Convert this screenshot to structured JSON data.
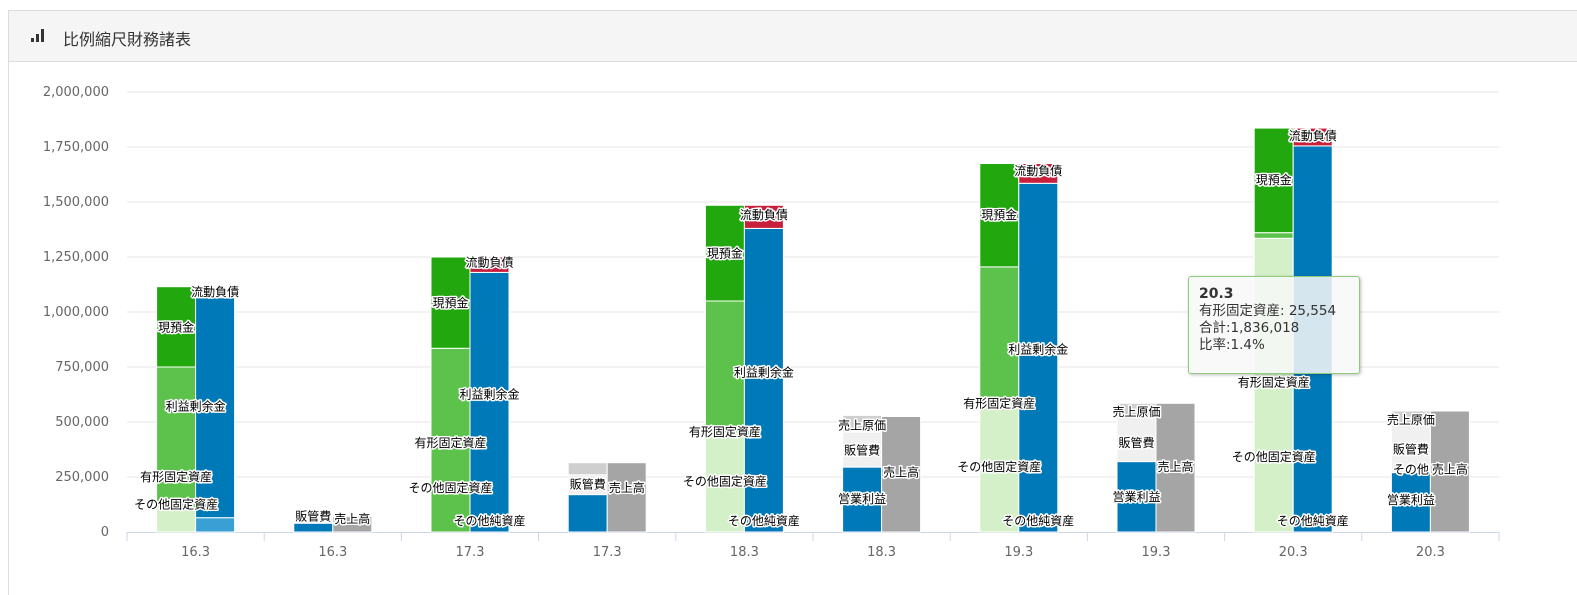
{
  "header": {
    "title": "比例縮尺財務諸表",
    "icon": "bar-chart-icon"
  },
  "tooltip": {
    "title": "20.3",
    "series_line": "有形固定資産: 25,554",
    "total_line": "合計:1,836,018",
    "ratio_line": "比率:1.4%"
  },
  "chart_data": {
    "type": "bar",
    "stacking": "stacked",
    "ylim": [
      0,
      2000000
    ],
    "yticks": [
      "0",
      "250,000",
      "500,000",
      "750,000",
      "1,000,000",
      "1,250,000",
      "1,500,000",
      "1,750,000",
      "2,000,000"
    ],
    "ytick_values": [
      0,
      250000,
      500000,
      750000,
      1000000,
      1250000,
      1500000,
      1750000,
      2000000
    ],
    "grid": true,
    "categories": [
      "16.3",
      "16.3",
      "17.3",
      "17.3",
      "18.3",
      "18.3",
      "19.3",
      "19.3",
      "20.3",
      "20.3"
    ],
    "colors": {
      "cash": "#22a80e",
      "tangible": "#5cc24c",
      "other_fixed": "#d4f0c8",
      "current_liab": "#c8203c",
      "retained": "#0079b8",
      "other_net": "#3a9fd5",
      "sga": "#f0f0f0",
      "cogs": "#cfcfcf",
      "op_income": "#0079b8",
      "sales": "#a5a5a5"
    },
    "groups": [
      {
        "category": "16.3",
        "kind": "bs",
        "assets": [
          {
            "name": "その他固定資産",
            "value": 110000,
            "key": "other_fixed"
          },
          {
            "name": "有形固定資産",
            "value": 640000,
            "key": "tangible"
          },
          {
            "name": "現預金",
            "value": 365000,
            "key": "cash"
          }
        ],
        "liabilities": [
          {
            "name": "その他純資産",
            "value": 65000,
            "key": "other_net"
          },
          {
            "name": "利益剰余金",
            "value": 1000000,
            "key": "retained"
          },
          {
            "name": "流動負債",
            "value": 10000,
            "key": "current_liab"
          }
        ],
        "labels": [
          {
            "text": "その他固定資産",
            "y": 125000,
            "bar": "assets"
          },
          {
            "text": "有形固定資産",
            "y": 250000,
            "bar": "assets"
          },
          {
            "text": "現預金",
            "y": 930000,
            "bar": "assets"
          },
          {
            "text": "利益剰余金",
            "y": 570000,
            "bar": "both"
          },
          {
            "text": "流動負債",
            "y": 1090000,
            "bar": "liabilities"
          }
        ]
      },
      {
        "category": "16.3",
        "kind": "pl",
        "costs": [
          {
            "name": "営業利益",
            "value": 40000,
            "key": "op_income"
          },
          {
            "name": "販管費",
            "value": 30000,
            "key": "sga"
          },
          {
            "name": "売上原価",
            "value": 0,
            "key": "cogs"
          }
        ],
        "sales": [
          {
            "name": "売上高",
            "value": 70000,
            "key": "sales"
          }
        ],
        "labels": [
          {
            "text": "販管費",
            "y": 70000,
            "bar": "costs"
          },
          {
            "text": "売上高",
            "y": 60000,
            "bar": "sales"
          }
        ]
      },
      {
        "category": "17.3",
        "kind": "bs",
        "assets": [
          {
            "name": "その他固定資産",
            "value": 0,
            "key": "other_fixed"
          },
          {
            "name": "有形固定資産",
            "value": 835000,
            "key": "tangible"
          },
          {
            "name": "現預金",
            "value": 415000,
            "key": "cash"
          }
        ],
        "liabilities": [
          {
            "name": "その他純資産",
            "value": 0,
            "key": "other_net"
          },
          {
            "name": "利益剰余金",
            "value": 1180000,
            "key": "retained"
          },
          {
            "name": "流動負債",
            "value": 70000,
            "key": "current_liab"
          }
        ],
        "labels": [
          {
            "text": "その他純資産",
            "y": 50000,
            "bar": "liabilities"
          },
          {
            "text": "その他固定資産",
            "y": 200000,
            "bar": "assets"
          },
          {
            "text": "有形固定資産",
            "y": 405000,
            "bar": "assets"
          },
          {
            "text": "利益剰余金",
            "y": 625000,
            "bar": "liabilities"
          },
          {
            "text": "現預金",
            "y": 1040000,
            "bar": "assets"
          },
          {
            "text": "流動負債",
            "y": 1225000,
            "bar": "liabilities"
          }
        ]
      },
      {
        "category": "17.3",
        "kind": "pl",
        "costs": [
          {
            "name": "営業利益",
            "value": 170000,
            "key": "op_income"
          },
          {
            "name": "販管費",
            "value": 90000,
            "key": "sga"
          },
          {
            "name": "売上原価",
            "value": 55000,
            "key": "cogs"
          }
        ],
        "sales": [
          {
            "name": "売上高",
            "value": 315000,
            "key": "sales"
          }
        ],
        "labels": [
          {
            "text": "販管費",
            "y": 215000,
            "bar": "costs"
          },
          {
            "text": "売上高",
            "y": 200000,
            "bar": "sales"
          }
        ]
      },
      {
        "category": "18.3",
        "kind": "bs",
        "assets": [
          {
            "name": "その他固定資産",
            "value": 450000,
            "key": "other_fixed"
          },
          {
            "name": "有形固定資産",
            "value": 600000,
            "key": "tangible"
          },
          {
            "name": "現預金",
            "value": 435000,
            "key": "cash"
          }
        ],
        "liabilities": [
          {
            "name": "その他純資産",
            "value": 0,
            "key": "other_net"
          },
          {
            "name": "利益剰余金",
            "value": 1380000,
            "key": "retained"
          },
          {
            "name": "流動負債",
            "value": 105000,
            "key": "current_liab"
          }
        ],
        "labels": [
          {
            "text": "その他純資産",
            "y": 50000,
            "bar": "liabilities"
          },
          {
            "text": "その他固定資産",
            "y": 230000,
            "bar": "assets"
          },
          {
            "text": "有形固定資産",
            "y": 455000,
            "bar": "assets"
          },
          {
            "text": "利益剰余金",
            "y": 725000,
            "bar": "liabilities"
          },
          {
            "text": "現預金",
            "y": 1265000,
            "bar": "assets"
          },
          {
            "text": "流動負債",
            "y": 1440000,
            "bar": "liabilities"
          }
        ]
      },
      {
        "category": "18.3",
        "kind": "pl",
        "costs": [
          {
            "name": "営業利益",
            "value": 295000,
            "key": "op_income"
          },
          {
            "name": "販管費",
            "value": 160000,
            "key": "sga"
          },
          {
            "name": "売上原価",
            "value": 75000,
            "key": "cogs"
          }
        ],
        "sales": [
          {
            "name": "売上高",
            "value": 525000,
            "key": "sales"
          }
        ],
        "labels": [
          {
            "text": "売上原価",
            "y": 485000,
            "bar": "costs"
          },
          {
            "text": "販管費",
            "y": 370000,
            "bar": "costs"
          },
          {
            "text": "売上高",
            "y": 270000,
            "bar": "sales"
          },
          {
            "text": "営業利益",
            "y": 150000,
            "bar": "costs"
          }
        ]
      },
      {
        "category": "19.3",
        "kind": "bs",
        "assets": [
          {
            "name": "その他固定資産",
            "value": 605000,
            "key": "other_fixed"
          },
          {
            "name": "有形固定資産",
            "value": 600000,
            "key": "tangible"
          },
          {
            "name": "現預金",
            "value": 470000,
            "key": "cash"
          }
        ],
        "liabilities": [
          {
            "name": "その他純資産",
            "value": 0,
            "key": "other_net"
          },
          {
            "name": "利益剰余金",
            "value": 1585000,
            "key": "retained"
          },
          {
            "name": "流動負債",
            "value": 90000,
            "key": "current_liab"
          }
        ],
        "labels": [
          {
            "text": "その他純資産",
            "y": 50000,
            "bar": "liabilities"
          },
          {
            "text": "その他固定資産",
            "y": 295000,
            "bar": "assets"
          },
          {
            "text": "有形固定資産",
            "y": 585000,
            "bar": "assets"
          },
          {
            "text": "利益剰余金",
            "y": 830000,
            "bar": "liabilities"
          },
          {
            "text": "現預金",
            "y": 1440000,
            "bar": "assets"
          },
          {
            "text": "流動負債",
            "y": 1640000,
            "bar": "liabilities"
          }
        ]
      },
      {
        "category": "19.3",
        "kind": "pl",
        "costs": [
          {
            "name": "営業利益",
            "value": 320000,
            "key": "op_income"
          },
          {
            "name": "販管費",
            "value": 205000,
            "key": "sga"
          },
          {
            "name": "売上原価",
            "value": 60000,
            "key": "cogs"
          }
        ],
        "sales": [
          {
            "name": "売上高",
            "value": 585000,
            "key": "sales"
          }
        ],
        "labels": [
          {
            "text": "売上原価",
            "y": 545000,
            "bar": "costs"
          },
          {
            "text": "販管費",
            "y": 405000,
            "bar": "costs"
          },
          {
            "text": "売上高",
            "y": 295000,
            "bar": "sales"
          },
          {
            "text": "営業利益",
            "y": 160000,
            "bar": "costs"
          }
        ]
      },
      {
        "category": "20.3",
        "kind": "bs",
        "assets": [
          {
            "name": "その他固定資産",
            "value": 1335000,
            "key": "other_fixed"
          },
          {
            "name": "有形固定資産",
            "value": 25554,
            "key": "tangible"
          },
          {
            "name": "現預金",
            "value": 475464,
            "key": "cash"
          }
        ],
        "liabilities": [
          {
            "name": "その他純資産",
            "value": 0,
            "key": "other_net"
          },
          {
            "name": "利益剰余金",
            "value": 1755000,
            "key": "retained"
          },
          {
            "name": "流動負債",
            "value": 81018,
            "key": "current_liab"
          }
        ],
        "labels": [
          {
            "text": "その他純資産",
            "y": 50000,
            "bar": "liabilities"
          },
          {
            "text": "その他固定資産",
            "y": 340000,
            "bar": "assets"
          },
          {
            "text": "有形固定資産",
            "y": 680000,
            "bar": "assets"
          },
          {
            "text": "現預金",
            "y": 1600000,
            "bar": "assets"
          },
          {
            "text": "流動負債",
            "y": 1800000,
            "bar": "liabilities"
          }
        ]
      },
      {
        "category": "20.3",
        "kind": "pl",
        "costs": [
          {
            "name": "営業利益",
            "value": 270000,
            "key": "op_income"
          },
          {
            "name": "販管費",
            "value": 220000,
            "key": "sga"
          },
          {
            "name": "売上原価",
            "value": 60000,
            "key": "cogs"
          }
        ],
        "sales": [
          {
            "name": "売上高",
            "value": 550000,
            "key": "sales"
          }
        ],
        "labels": [
          {
            "text": "売上原価",
            "y": 510000,
            "bar": "costs"
          },
          {
            "text": "販管費",
            "y": 375000,
            "bar": "costs"
          },
          {
            "text": "その他",
            "y": 285000,
            "bar": "costs"
          },
          {
            "text": "売上高",
            "y": 285000,
            "bar": "sales"
          },
          {
            "text": "営業利益",
            "y": 145000,
            "bar": "costs"
          }
        ]
      }
    ]
  }
}
